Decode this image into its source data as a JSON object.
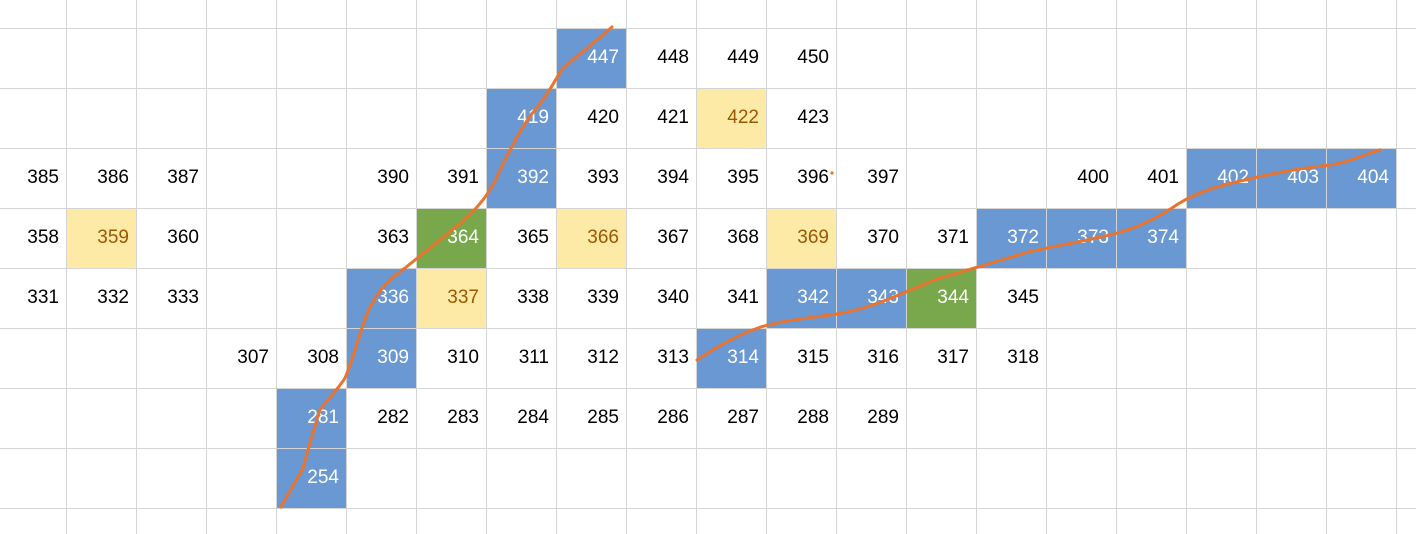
{
  "colors": {
    "blue_fill": "#6a98d3",
    "yellow_fill": "#fdeaa7",
    "green_fill": "#78a84b",
    "grid": "#d4d4d4",
    "path_line": "#e8742f"
  },
  "rows": [
    {
      "row": 0,
      "cells": []
    },
    {
      "row": 1,
      "cells": [
        {
          "col": 8,
          "value": "447",
          "fill": "blue"
        },
        {
          "col": 9,
          "value": "448"
        },
        {
          "col": 10,
          "value": "449"
        },
        {
          "col": 11,
          "value": "450"
        }
      ]
    },
    {
      "row": 2,
      "cells": [
        {
          "col": 7,
          "value": "419",
          "fill": "blue"
        },
        {
          "col": 8,
          "value": "420"
        },
        {
          "col": 9,
          "value": "421"
        },
        {
          "col": 10,
          "value": "422",
          "fill": "yellow"
        },
        {
          "col": 11,
          "value": "423"
        }
      ]
    },
    {
      "row": 3,
      "cells": [
        {
          "col": 0,
          "value": "385"
        },
        {
          "col": 1,
          "value": "386"
        },
        {
          "col": 2,
          "value": "387"
        },
        {
          "col": 5,
          "value": "390"
        },
        {
          "col": 6,
          "value": "391"
        },
        {
          "col": 7,
          "value": "392",
          "fill": "blue"
        },
        {
          "col": 8,
          "value": "393"
        },
        {
          "col": 9,
          "value": "394"
        },
        {
          "col": 10,
          "value": "395"
        },
        {
          "col": 11,
          "value": "396"
        },
        {
          "col": 12,
          "value": "397"
        },
        {
          "col": 15,
          "value": "400"
        },
        {
          "col": 16,
          "value": "401"
        },
        {
          "col": 17,
          "value": "402",
          "fill": "blue"
        },
        {
          "col": 18,
          "value": "403",
          "fill": "blue"
        },
        {
          "col": 19,
          "value": "404",
          "fill": "blue"
        }
      ]
    },
    {
      "row": 4,
      "cells": [
        {
          "col": 0,
          "value": "358"
        },
        {
          "col": 1,
          "value": "359",
          "fill": "yellow"
        },
        {
          "col": 2,
          "value": "360"
        },
        {
          "col": 5,
          "value": "363"
        },
        {
          "col": 6,
          "value": "364",
          "fill": "green"
        },
        {
          "col": 7,
          "value": "365"
        },
        {
          "col": 8,
          "value": "366",
          "fill": "yellow"
        },
        {
          "col": 9,
          "value": "367"
        },
        {
          "col": 10,
          "value": "368"
        },
        {
          "col": 11,
          "value": "369",
          "fill": "yellow"
        },
        {
          "col": 12,
          "value": "370"
        },
        {
          "col": 13,
          "value": "371"
        },
        {
          "col": 14,
          "value": "372",
          "fill": "blue"
        },
        {
          "col": 15,
          "value": "373",
          "fill": "blue"
        },
        {
          "col": 16,
          "value": "374",
          "fill": "blue"
        }
      ]
    },
    {
      "row": 5,
      "cells": [
        {
          "col": 0,
          "value": "331"
        },
        {
          "col": 1,
          "value": "332"
        },
        {
          "col": 2,
          "value": "333"
        },
        {
          "col": 5,
          "value": "336",
          "fill": "blue"
        },
        {
          "col": 6,
          "value": "337",
          "fill": "yellow"
        },
        {
          "col": 7,
          "value": "338"
        },
        {
          "col": 8,
          "value": "339"
        },
        {
          "col": 9,
          "value": "340"
        },
        {
          "col": 10,
          "value": "341"
        },
        {
          "col": 11,
          "value": "342",
          "fill": "blue"
        },
        {
          "col": 12,
          "value": "343",
          "fill": "blue"
        },
        {
          "col": 13,
          "value": "344",
          "fill": "green"
        },
        {
          "col": 14,
          "value": "345"
        }
      ]
    },
    {
      "row": 6,
      "cells": [
        {
          "col": 3,
          "value": "307"
        },
        {
          "col": 4,
          "value": "308"
        },
        {
          "col": 5,
          "value": "309",
          "fill": "blue"
        },
        {
          "col": 6,
          "value": "310"
        },
        {
          "col": 7,
          "value": "311"
        },
        {
          "col": 8,
          "value": "312"
        },
        {
          "col": 9,
          "value": "313"
        },
        {
          "col": 10,
          "value": "314",
          "fill": "blue"
        },
        {
          "col": 11,
          "value": "315"
        },
        {
          "col": 12,
          "value": "316"
        },
        {
          "col": 13,
          "value": "317"
        },
        {
          "col": 14,
          "value": "318"
        }
      ]
    },
    {
      "row": 7,
      "cells": [
        {
          "col": 4,
          "value": "281",
          "fill": "blue"
        },
        {
          "col": 5,
          "value": "282"
        },
        {
          "col": 6,
          "value": "283"
        },
        {
          "col": 7,
          "value": "284"
        },
        {
          "col": 8,
          "value": "285"
        },
        {
          "col": 9,
          "value": "286"
        },
        {
          "col": 10,
          "value": "287"
        },
        {
          "col": 11,
          "value": "288"
        },
        {
          "col": 12,
          "value": "289"
        }
      ]
    },
    {
      "row": 8,
      "cells": [
        {
          "col": 4,
          "value": "254",
          "fill": "blue"
        }
      ]
    }
  ]
}
